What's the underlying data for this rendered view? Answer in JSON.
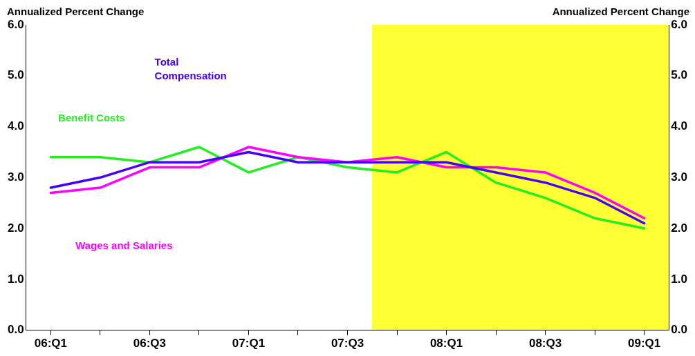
{
  "chart_data": {
    "type": "line",
    "ylabel": "Annualized Percent Change",
    "y2label": "Annualized Percent Change",
    "categories": [
      "06:Q1",
      null,
      "06:Q3",
      null,
      "07:Q1",
      null,
      "07:Q3",
      null,
      "08:Q1",
      null,
      "08:Q3",
      null,
      "09:Q1"
    ],
    "series": [
      {
        "name": "Total Compensation",
        "color": "#4400ff",
        "values": [
          2.8,
          3.0,
          3.3,
          3.3,
          3.5,
          3.3,
          3.3,
          3.3,
          3.3,
          3.1,
          2.9,
          2.6,
          2.1
        ]
      },
      {
        "name": "Wages and Salaries",
        "color": "#ff00ff",
        "values": [
          2.7,
          2.8,
          3.2,
          3.2,
          3.6,
          3.4,
          3.3,
          3.4,
          3.2,
          3.2,
          3.1,
          2.7,
          2.2
        ]
      },
      {
        "name": "Benefit Costs",
        "color": "#22ee22",
        "values": [
          3.4,
          3.4,
          3.3,
          3.6,
          3.1,
          3.4,
          3.2,
          3.1,
          3.5,
          2.9,
          2.6,
          2.2,
          2.0
        ]
      }
    ],
    "ylim": [
      0,
      6
    ],
    "yticks": [
      {
        "value": 0,
        "label": "0.0"
      },
      {
        "value": 1,
        "label": "1.0"
      },
      {
        "value": 2,
        "label": "2.0"
      },
      {
        "value": 3,
        "label": "3.0"
      },
      {
        "value": 4,
        "label": "4.0"
      },
      {
        "value": 5,
        "label": "5.0"
      },
      {
        "value": 6,
        "label": "6.0"
      }
    ],
    "y2lim": [
      0,
      6
    ],
    "y2ticks": [
      {
        "value": 0,
        "label": "0.0"
      },
      {
        "value": 1,
        "label": "1.0"
      },
      {
        "value": 2,
        "label": "2.0"
      },
      {
        "value": 3,
        "label": "3.0"
      },
      {
        "value": 4,
        "label": "4.0"
      },
      {
        "value": 5,
        "label": "5.0"
      },
      {
        "value": 6,
        "label": "6.0"
      }
    ],
    "grid": false,
    "legend": false,
    "marker": "none",
    "line_style": "solid"
  }
}
